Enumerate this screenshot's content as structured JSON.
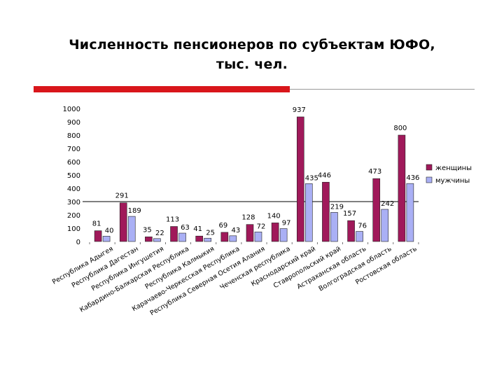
{
  "title": {
    "line1": "Численность пенсионеров по субъектам ЮФО,",
    "line2": "тыс. чел."
  },
  "colors": {
    "accent_red": "#d9161b",
    "women": "#a0195a",
    "men": "#aab0f5"
  },
  "chart_data": {
    "type": "bar",
    "title": "Численность пенсионеров по субъектам ЮФО, тыс. чел.",
    "xlabel": "",
    "ylabel": "",
    "ylim": [
      0,
      1000
    ],
    "yticks": [
      0,
      100,
      200,
      300,
      400,
      500,
      600,
      700,
      800,
      900,
      1000
    ],
    "grid": false,
    "legend_position": "right",
    "reference_line": 300,
    "categories": [
      "Республика Адыгея",
      "Республика Дагестан",
      "Республика Ингушетия",
      "Кабардино-Балкарская Республика",
      "Республика Калмыкия",
      "Карачаево-Черкесская Республика",
      "Республика Северная Осетия Алания",
      "Чеченская республика",
      "Краснодарский край",
      "Ставропольский край",
      "Астраханская область",
      "Волгоградская область",
      "Ростовская область"
    ],
    "series": [
      {
        "name": "женщины",
        "values": [
          81,
          291,
          35,
          113,
          41,
          69,
          128,
          140,
          937,
          446,
          157,
          473,
          800
        ]
      },
      {
        "name": "мужчины",
        "values": [
          40,
          189,
          22,
          63,
          25,
          43,
          72,
          97,
          435,
          219,
          76,
          242,
          436
        ]
      }
    ]
  }
}
